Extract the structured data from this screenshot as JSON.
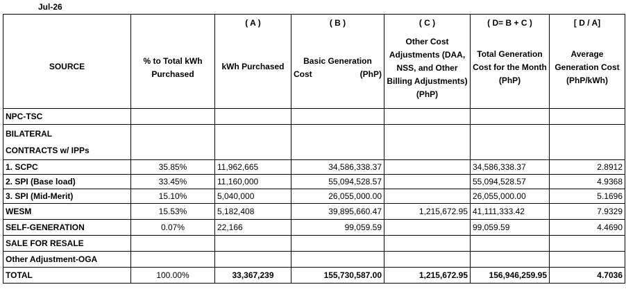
{
  "period": "Jul-26",
  "headers": {
    "source": "SOURCE",
    "pct": "% to Total kWh Purchased",
    "a_letter": "( A )",
    "a_label": "kWh Purchased",
    "b_letter": "( B )",
    "b_label_line1": "Basic Generation",
    "b_label_left": "Cost",
    "b_label_unit": "(PhP)",
    "c_letter": "( C )",
    "c_label": "Other Cost Adjustments (DAA, NSS, and Other Billing Adjustments) (PhP)",
    "d_letter": "( D= B + C )",
    "d_label": "Total Generation Cost for the Month (PhP)",
    "e_letter": "[ D / A]",
    "e_label": "Average Generation Cost (PhP/kWh)"
  },
  "rows": {
    "npc": {
      "source": "NPC-TSC"
    },
    "bilateral": {
      "line1": "BILATERAL",
      "line2": "CONTRACTS w/ IPPs"
    },
    "scpc": {
      "source": "1.   SCPC",
      "pct": "35.85%",
      "kwh": "11,962,665",
      "basic": "34,586,338.37",
      "other": "",
      "total": "34,586,338.37",
      "avg": "2.8912"
    },
    "spi_base": {
      "source": "2.   SPI (Base load)",
      "pct": "33.45%",
      "kwh": "11,160,000",
      "basic": "55,094,528.57",
      "other": "",
      "total": "55,094,528.57",
      "avg": "4.9368"
    },
    "spi_mid": {
      "source": "3.   SPI (Mid-Merit)",
      "pct": "15.10%",
      "kwh": "5,040,000",
      "basic": "26,055,000.00",
      "other": "",
      "total": "26,055,000.00",
      "avg": "5.1696"
    },
    "wesm": {
      "source": "WESM",
      "pct": "15.53%",
      "kwh": "5,182,408",
      "basic": "39,895,660.47",
      "other": "1,215,672.95",
      "total": "41,111,333.42",
      "avg": "7.9329"
    },
    "selfgen": {
      "source": "SELF-GENERATION",
      "pct": "0.07%",
      "kwh": "22,166",
      "basic": "99,059.59",
      "other": "",
      "total": "99,059.59",
      "avg": "4.4690"
    },
    "resale": {
      "source": "SALE FOR RESALE"
    },
    "oga": {
      "source": "Other Adjustment-OGA"
    },
    "total": {
      "source": "TOTAL",
      "pct": "100.00%",
      "kwh": "33,367,239",
      "basic": "155,730,587.00",
      "other": "1,215,672.95",
      "total": "156,946,259.95",
      "avg": "4.7036"
    }
  }
}
